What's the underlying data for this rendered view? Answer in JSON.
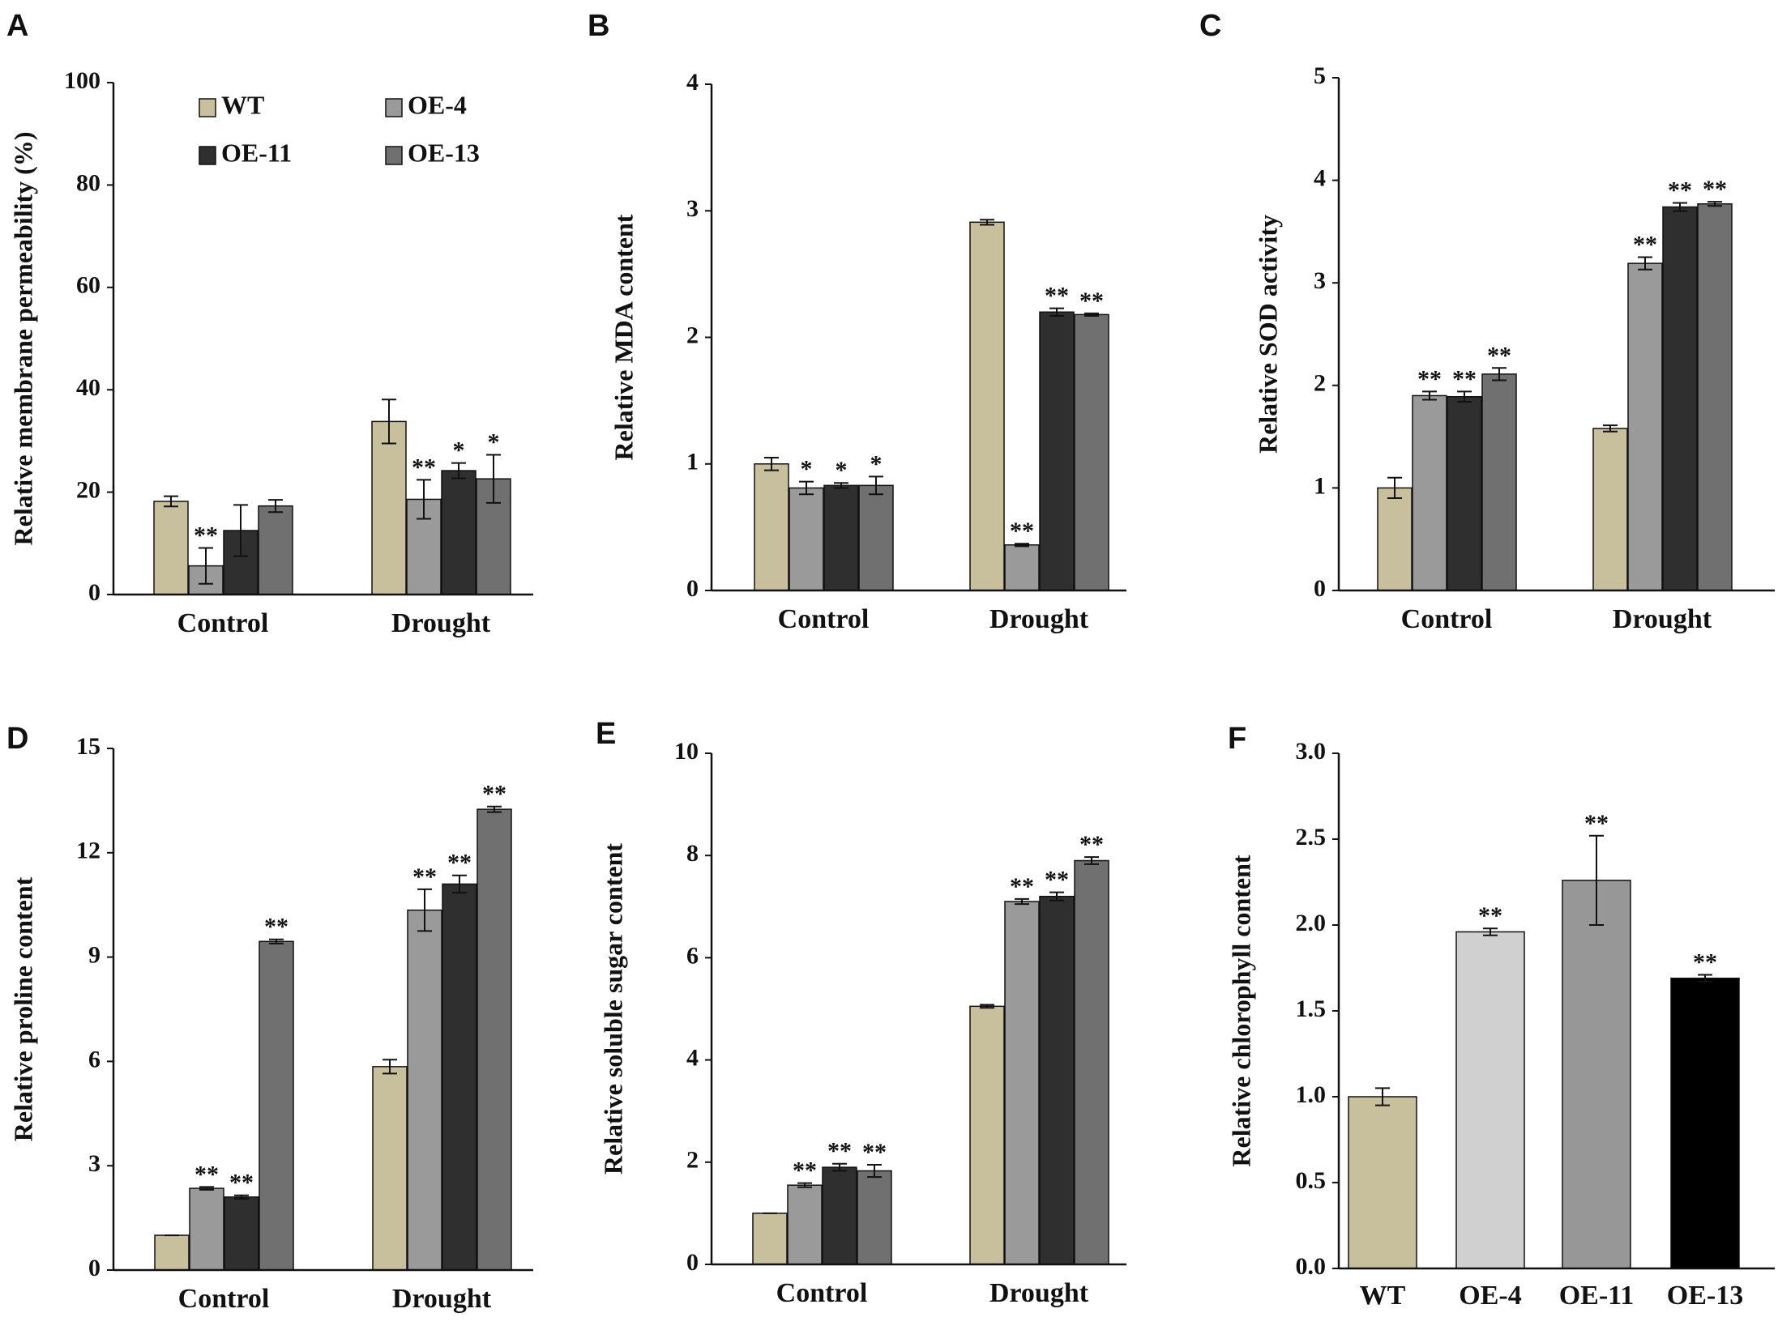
{
  "colors": {
    "WT": "#c8bf9c",
    "OE-4": "#9a9a9a",
    "OE-11": "#2f2f2f",
    "OE-13": "#707070",
    "F_bars": [
      "#c8bf9c",
      "#d0d0d0",
      "#979797",
      "#000000"
    ]
  },
  "legend": [
    "WT",
    "OE-4",
    "OE-11",
    "OE-13"
  ],
  "chart_data": [
    {
      "panel": "A",
      "type": "bar",
      "ylabel": "Relative membrane permeability (%)",
      "ylim": [
        0,
        100
      ],
      "yticks": [
        "0",
        "20",
        "40",
        "60",
        "80",
        "100"
      ],
      "categories": [
        "Control",
        "Drought"
      ],
      "series": [
        {
          "name": "WT",
          "values": [
            18.2,
            33.8
          ],
          "errors": [
            1.0,
            4.3
          ],
          "sig": [
            "",
            ""
          ]
        },
        {
          "name": "OE-4",
          "values": [
            5.6,
            18.6
          ],
          "errors": [
            3.5,
            3.8
          ],
          "sig": [
            "**",
            "**"
          ]
        },
        {
          "name": "OE-11",
          "values": [
            12.5,
            24.2
          ],
          "errors": [
            5.0,
            1.5
          ],
          "sig": [
            "",
            "*"
          ]
        },
        {
          "name": "OE-13",
          "values": [
            17.3,
            22.6
          ],
          "errors": [
            1.2,
            4.7
          ],
          "sig": [
            "",
            "*"
          ]
        }
      ]
    },
    {
      "panel": "B",
      "type": "bar",
      "ylabel": "Relative MDA content",
      "ylim": [
        0,
        4
      ],
      "yticks": [
        "0",
        "1",
        "2",
        "3",
        "4"
      ],
      "categories": [
        "Control",
        "Drought"
      ],
      "series": [
        {
          "name": "WT",
          "values": [
            1.0,
            2.91
          ],
          "errors": [
            0.05,
            0.02
          ],
          "sig": [
            "",
            ""
          ]
        },
        {
          "name": "OE-4",
          "values": [
            0.81,
            0.36
          ],
          "errors": [
            0.05,
            0.01
          ],
          "sig": [
            "*",
            "**"
          ]
        },
        {
          "name": "OE-11",
          "values": [
            0.83,
            2.2
          ],
          "errors": [
            0.02,
            0.03
          ],
          "sig": [
            "*",
            "**"
          ]
        },
        {
          "name": "OE-13",
          "values": [
            0.83,
            2.18
          ],
          "errors": [
            0.07,
            0.01
          ],
          "sig": [
            "*",
            "**"
          ]
        }
      ]
    },
    {
      "panel": "C",
      "type": "bar",
      "ylabel": "Relative SOD activity",
      "ylim": [
        0,
        5
      ],
      "yticks": [
        "0",
        "1",
        "2",
        "3",
        "4",
        "5"
      ],
      "categories": [
        "Control",
        "Drought"
      ],
      "series": [
        {
          "name": "WT",
          "values": [
            1.0,
            1.58
          ],
          "errors": [
            0.1,
            0.03
          ],
          "sig": [
            "",
            ""
          ]
        },
        {
          "name": "OE-4",
          "values": [
            1.9,
            3.19
          ],
          "errors": [
            0.04,
            0.06
          ],
          "sig": [
            "**",
            "**"
          ]
        },
        {
          "name": "OE-11",
          "values": [
            1.89,
            3.74
          ],
          "errors": [
            0.05,
            0.04
          ],
          "sig": [
            "**",
            "**"
          ]
        },
        {
          "name": "OE-13",
          "values": [
            2.11,
            3.77
          ],
          "errors": [
            0.06,
            0.02
          ],
          "sig": [
            "**",
            "**"
          ]
        }
      ]
    },
    {
      "panel": "D",
      "type": "bar",
      "ylabel": "Relative proline content",
      "ylim": [
        0,
        15
      ],
      "yticks": [
        "0",
        "3",
        "6",
        "9",
        "12",
        "15"
      ],
      "categories": [
        "Control",
        "Drought"
      ],
      "series": [
        {
          "name": "WT",
          "values": [
            1.0,
            5.85
          ],
          "errors": [
            0.0,
            0.2
          ],
          "sig": [
            "",
            ""
          ]
        },
        {
          "name": "OE-4",
          "values": [
            2.35,
            10.35
          ],
          "errors": [
            0.04,
            0.6
          ],
          "sig": [
            "**",
            "**"
          ]
        },
        {
          "name": "OE-11",
          "values": [
            2.1,
            11.1
          ],
          "errors": [
            0.05,
            0.25
          ],
          "sig": [
            "**",
            "**"
          ]
        },
        {
          "name": "OE-13",
          "values": [
            9.45,
            13.25
          ],
          "errors": [
            0.06,
            0.08
          ],
          "sig": [
            "**",
            "**"
          ]
        }
      ]
    },
    {
      "panel": "E",
      "type": "bar",
      "ylabel": "Relative soluble sugar content",
      "ylim": [
        0,
        10
      ],
      "yticks": [
        "0",
        "2",
        "4",
        "6",
        "8",
        "10"
      ],
      "categories": [
        "Control",
        "Drought"
      ],
      "series": [
        {
          "name": "WT",
          "values": [
            1.0,
            5.05
          ],
          "errors": [
            0.0,
            0.03
          ],
          "sig": [
            "",
            ""
          ]
        },
        {
          "name": "OE-4",
          "values": [
            1.55,
            7.1
          ],
          "errors": [
            0.04,
            0.05
          ],
          "sig": [
            "**",
            "**"
          ]
        },
        {
          "name": "OE-11",
          "values": [
            1.9,
            7.2
          ],
          "errors": [
            0.07,
            0.08
          ],
          "sig": [
            "**",
            "**"
          ]
        },
        {
          "name": "OE-13",
          "values": [
            1.83,
            7.9
          ],
          "errors": [
            0.12,
            0.07
          ],
          "sig": [
            "**",
            "**"
          ]
        }
      ]
    },
    {
      "panel": "F",
      "type": "bar",
      "ylabel": "Relative chlorophyll content",
      "ylim": [
        0,
        3
      ],
      "yticks": [
        "0.0",
        "0.5",
        "1.0",
        "1.5",
        "2.0",
        "2.5",
        "3.0"
      ],
      "categories": [
        "WT",
        "OE-4",
        "OE-11",
        "OE-13"
      ],
      "values": [
        1.0,
        1.96,
        2.26,
        1.69
      ],
      "errors": [
        0.05,
        0.02,
        0.26,
        0.02
      ],
      "sig": [
        "",
        "**",
        "**",
        "**"
      ]
    }
  ]
}
